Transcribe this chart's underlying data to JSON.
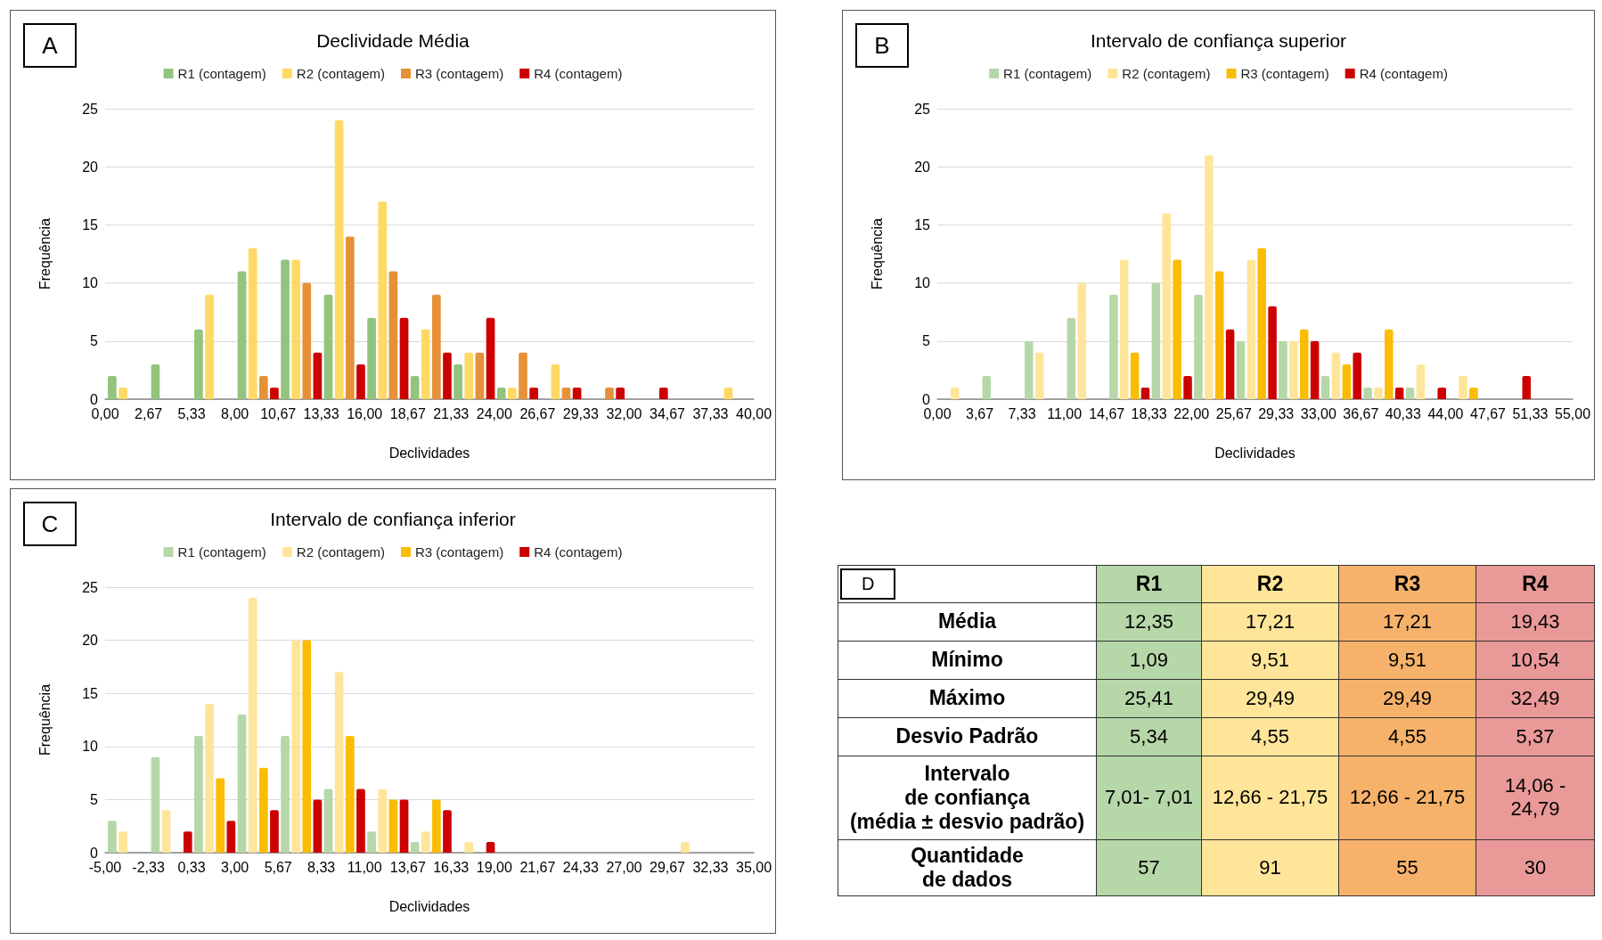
{
  "chart_data": [
    {
      "type": "histogram",
      "title": "Declividade Média",
      "xlabel": "Declividades",
      "ylabel": "Frequência",
      "annotations": [
        "A"
      ],
      "legend": "top",
      "grid": "y",
      "bins": [
        0,
        2.67,
        5.33,
        8,
        10.67,
        13.33,
        16,
        18.67,
        21.33,
        24,
        26.67,
        29.33,
        32,
        34.67,
        37.33,
        40
      ],
      "xlim": [
        0,
        40
      ],
      "xticks": [
        {
          "value": 0,
          "label": "0,00"
        },
        {
          "value": 2.67,
          "label": "2,67"
        },
        {
          "value": 5.33,
          "label": "5,33"
        },
        {
          "value": 8,
          "label": "8,00"
        },
        {
          "value": 10.67,
          "label": "10,67"
        },
        {
          "value": 13.33,
          "label": "13,33"
        },
        {
          "value": 16,
          "label": "16,00"
        },
        {
          "value": 18.67,
          "label": "18,67"
        },
        {
          "value": 21.33,
          "label": "21,33"
        },
        {
          "value": 24,
          "label": "24,00"
        },
        {
          "value": 26.67,
          "label": "26,67"
        },
        {
          "value": 29.33,
          "label": "29,33"
        },
        {
          "value": 32,
          "label": "32,00"
        },
        {
          "value": 34.67,
          "label": "34,67"
        },
        {
          "value": 37.33,
          "label": "37,33"
        },
        {
          "value": 40,
          "label": "40,00"
        }
      ],
      "ylim": [
        0,
        25
      ],
      "yticks": [
        0,
        5,
        10,
        15,
        20,
        25
      ],
      "series": [
        {
          "name": "R1 (contagem)",
          "color": "#93c47d",
          "values": [
            2,
            3,
            6,
            11,
            12,
            9,
            7,
            2,
            3,
            1,
            0,
            0,
            0,
            0,
            0
          ]
        },
        {
          "name": "R2 (contagem)",
          "color": "#ffd966",
          "values": [
            1,
            0,
            9,
            13,
            12,
            24,
            17,
            6,
            4,
            1,
            3,
            0,
            0,
            0,
            1
          ]
        },
        {
          "name": "R3 (contagem)",
          "color": "#e69138",
          "values": [
            0,
            0,
            0,
            2,
            10,
            14,
            11,
            9,
            4,
            4,
            1,
            1,
            0,
            0,
            0
          ]
        },
        {
          "name": "R4 (contagem)",
          "color": "#cc0000",
          "values": [
            0,
            0,
            0,
            1,
            4,
            3,
            7,
            4,
            7,
            1,
            1,
            1,
            1,
            0,
            0
          ]
        }
      ]
    },
    {
      "type": "histogram",
      "title": "Intervalo de confiança superior",
      "xlabel": "Declividades",
      "ylabel": "Frequência",
      "annotations": [
        "B"
      ],
      "legend": "top",
      "grid": "y",
      "bins": [
        0,
        3.67,
        7.33,
        11,
        14.67,
        18.33,
        22,
        25.67,
        29.33,
        33,
        36.67,
        40.33,
        44,
        47.67,
        51.33,
        55
      ],
      "xlim": [
        0,
        55
      ],
      "xticks": [
        {
          "value": 0,
          "label": "0,00"
        },
        {
          "value": 3.67,
          "label": "3,67"
        },
        {
          "value": 7.33,
          "label": "7,33"
        },
        {
          "value": 11,
          "label": "11,00"
        },
        {
          "value": 14.67,
          "label": "14,67"
        },
        {
          "value": 18.33,
          "label": "18,33"
        },
        {
          "value": 22,
          "label": "22,00"
        },
        {
          "value": 25.67,
          "label": "25,67"
        },
        {
          "value": 29.33,
          "label": "29,33"
        },
        {
          "value": 33,
          "label": "33,00"
        },
        {
          "value": 36.67,
          "label": "36,67"
        },
        {
          "value": 40.33,
          "label": "40,33"
        },
        {
          "value": 44,
          "label": "44,00"
        },
        {
          "value": 47.67,
          "label": "47,67"
        },
        {
          "value": 51.33,
          "label": "51,33"
        },
        {
          "value": 55,
          "label": "55,00"
        }
      ],
      "ylim": [
        0,
        25
      ],
      "yticks": [
        0,
        5,
        10,
        15,
        20,
        25
      ],
      "series": [
        {
          "name": "R1 (contagem)",
          "color": "#b6d7a8",
          "values": [
            0,
            2,
            5,
            7,
            9,
            10,
            9,
            5,
            5,
            2,
            1,
            1,
            0,
            0,
            0
          ]
        },
        {
          "name": "R2 (contagem)",
          "color": "#ffe599",
          "values": [
            1,
            0,
            4,
            10,
            12,
            16,
            21,
            12,
            5,
            4,
            1,
            3,
            2,
            0,
            0
          ]
        },
        {
          "name": "R3 (contagem)",
          "color": "#fbbc04",
          "values": [
            0,
            0,
            0,
            0,
            4,
            12,
            11,
            13,
            6,
            3,
            6,
            0,
            1,
            0,
            0
          ]
        },
        {
          "name": "R4 (contagem)",
          "color": "#cc0000",
          "values": [
            0,
            0,
            0,
            0,
            1,
            2,
            6,
            8,
            5,
            4,
            1,
            1,
            0,
            2,
            0
          ]
        }
      ]
    },
    {
      "type": "histogram",
      "title": "Intervalo de confiança inferior",
      "xlabel": "Declividades",
      "ylabel": "Frequência",
      "annotations": [
        "C"
      ],
      "legend": "top",
      "grid": "y",
      "bins": [
        -5,
        -2.33,
        0.33,
        3,
        5.67,
        8.33,
        11,
        13.67,
        16.33,
        19,
        21.67,
        24.33,
        27,
        29.67,
        32.33,
        35
      ],
      "xlim": [
        -5,
        35
      ],
      "xticks": [
        {
          "value": -5,
          "label": "-5,00"
        },
        {
          "value": -2.33,
          "label": "-2,33"
        },
        {
          "value": 0.33,
          "label": "0,33"
        },
        {
          "value": 3,
          "label": "3,00"
        },
        {
          "value": 5.67,
          "label": "5,67"
        },
        {
          "value": 8.33,
          "label": "8,33"
        },
        {
          "value": 11,
          "label": "11,00"
        },
        {
          "value": 13.67,
          "label": "13,67"
        },
        {
          "value": 16.33,
          "label": "16,33"
        },
        {
          "value": 19,
          "label": "19,00"
        },
        {
          "value": 21.67,
          "label": "21,67"
        },
        {
          "value": 24.33,
          "label": "24,33"
        },
        {
          "value": 27,
          "label": "27,00"
        },
        {
          "value": 29.67,
          "label": "29,67"
        },
        {
          "value": 32.33,
          "label": "32,33"
        },
        {
          "value": 35,
          "label": "35,00"
        }
      ],
      "ylim": [
        0,
        25
      ],
      "yticks": [
        0,
        5,
        10,
        15,
        20,
        25
      ],
      "series": [
        {
          "name": "R1 (contagem)",
          "color": "#b6d7a8",
          "values": [
            3,
            9,
            11,
            13,
            11,
            6,
            2,
            1,
            0,
            0,
            0,
            0,
            0,
            0,
            0
          ]
        },
        {
          "name": "R2 (contagem)",
          "color": "#ffe599",
          "values": [
            2,
            4,
            14,
            24,
            20,
            17,
            6,
            2,
            1,
            0,
            0,
            0,
            0,
            1,
            0
          ]
        },
        {
          "name": "R3 (contagem)",
          "color": "#fbbc04",
          "values": [
            0,
            0,
            7,
            8,
            20,
            11,
            5,
            5,
            0,
            0,
            0,
            0,
            0,
            0,
            0
          ]
        },
        {
          "name": "R4 (contagem)",
          "color": "#cc0000",
          "values": [
            0,
            2,
            3,
            4,
            5,
            6,
            5,
            4,
            1,
            0,
            0,
            0,
            0,
            0,
            0
          ]
        }
      ]
    },
    {
      "type": "other",
      "annotations": [
        "D"
      ],
      "categories": [
        "R1",
        "R2",
        "R3",
        "R4"
      ],
      "colors": [
        "#b6d7a8",
        "#ffe599",
        "#f6b26b",
        "#ea9999"
      ],
      "y_categories": [
        "Média",
        "Mínimo",
        "Máximo",
        "Desvio Padrão",
        "Intervalo\nde confiança\n(média ± desvio padrão)",
        "Quantidade\nde dados"
      ],
      "cell_labels": [
        [
          "12,35",
          "17,21",
          "17,21",
          "19,43"
        ],
        [
          "1,09",
          "9,51",
          "9,51",
          "10,54"
        ],
        [
          "25,41",
          "29,49",
          "29,49",
          "32,49"
        ],
        [
          "5,34",
          "4,55",
          "4,55",
          "5,37"
        ],
        [
          "7,01- 7,01",
          "12,66 - 21,75",
          "12,66 - 21,75",
          "14,06 - 24,79"
        ],
        [
          "57",
          "91",
          "55",
          "30"
        ]
      ]
    }
  ]
}
